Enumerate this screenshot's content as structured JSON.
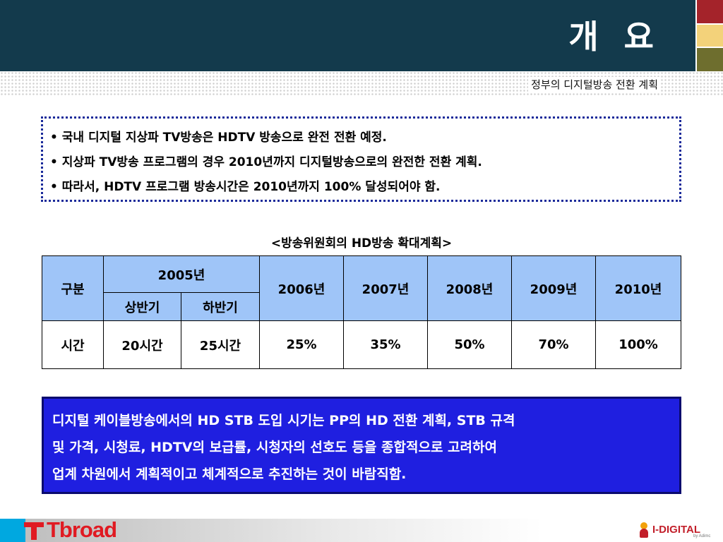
{
  "header": {
    "title": "개 요",
    "subtitle": "정부의 디지털방송 전환 계획"
  },
  "bullets": [
    "국내 디지털 지상파 TV방송은 HDTV 방송으로 완전 전환 예정.",
    "지상파 TV방송 프로그램의 경우 2010년까지 디지털방송으로의 완전한 전환 계획.",
    "따라서, HDTV 프로그램 방송시간은 2010년까지 100% 달성되어야 함."
  ],
  "table": {
    "caption": "<방송위원회의 HD방송 확대계획>",
    "header": {
      "category": "구분",
      "year_2005": "2005년",
      "half1": "상반기",
      "half2": "하반기",
      "year_2006": "2006년",
      "year_2007": "2007년",
      "year_2008": "2008년",
      "year_2009": "2009년",
      "year_2010": "2010년"
    },
    "row": {
      "label": "시간",
      "h1_2005": "20시간",
      "h2_2005": "25시간",
      "v2006": "25%",
      "v2007": "35%",
      "v2008": "50%",
      "v2009": "70%",
      "v2010": "100%"
    }
  },
  "conclusion": {
    "line1": "디지털 케이블방송에서의 HD STB 도입 시기는 PP의 HD 전환 계획, STB 규격",
    "line2": "및 가격, 시청료, HDTV의 보급률, 시청자의 선호도 등을 종합적으로 고려하여",
    "line3": "업계 차원에서 계획적이고 체계적으로 추진하는 것이 바람직함."
  },
  "footer": {
    "left_logo": "Tbroad",
    "right_logo": "I-DIGITAL",
    "right_logo_sub": "by Adimc"
  },
  "colors": {
    "header_bg": "#133a4c",
    "table_header": "#9fc5f8",
    "conclusion_bg": "#1f1fe0",
    "brand_red": "#e01a22"
  }
}
